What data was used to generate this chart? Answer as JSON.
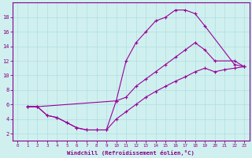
{
  "xlabel": "Windchill (Refroidissement éolien,°C)",
  "bg_color": "#d0f0f0",
  "line_color": "#990099",
  "grid_color": "#b0dede",
  "axis_color": "#880088",
  "text_color": "#880088",
  "xlim": [
    -0.5,
    23.5
  ],
  "ylim": [
    1.0,
    20.0
  ],
  "xticks": [
    0,
    1,
    2,
    3,
    4,
    5,
    6,
    7,
    8,
    9,
    10,
    11,
    12,
    13,
    14,
    15,
    16,
    17,
    18,
    19,
    20,
    21,
    22,
    23
  ],
  "yticks": [
    2,
    4,
    6,
    8,
    10,
    12,
    14,
    16,
    18
  ],
  "line1_x": [
    1,
    2,
    3,
    4,
    5,
    6,
    7,
    8,
    9,
    10,
    11,
    12,
    13,
    14,
    15,
    16,
    17,
    18,
    19,
    22,
    23
  ],
  "line1_y": [
    5.7,
    5.7,
    4.5,
    4.2,
    3.5,
    2.8,
    2.5,
    2.5,
    2.5,
    6.5,
    12.0,
    14.5,
    16.0,
    17.5,
    18.0,
    19.0,
    19.0,
    18.5,
    16.8,
    11.5,
    11.2
  ],
  "line2_x": [
    1,
    2,
    10,
    11,
    12,
    13,
    14,
    15,
    16,
    17,
    18,
    19,
    20,
    22,
    23
  ],
  "line2_y": [
    5.7,
    5.7,
    6.5,
    7.0,
    8.5,
    9.5,
    10.5,
    11.5,
    12.5,
    13.5,
    14.5,
    13.5,
    12.0,
    12.0,
    11.2
  ],
  "line3_x": [
    1,
    2,
    3,
    4,
    5,
    6,
    7,
    8,
    9,
    10,
    11,
    12,
    13,
    14,
    15,
    16,
    17,
    18,
    19,
    20,
    21,
    22,
    23
  ],
  "line3_y": [
    5.7,
    5.7,
    4.5,
    4.2,
    3.5,
    2.8,
    2.5,
    2.5,
    2.5,
    4.0,
    5.0,
    6.0,
    7.0,
    7.8,
    8.5,
    9.2,
    9.8,
    10.5,
    11.0,
    10.5,
    10.8,
    11.0,
    11.2
  ]
}
